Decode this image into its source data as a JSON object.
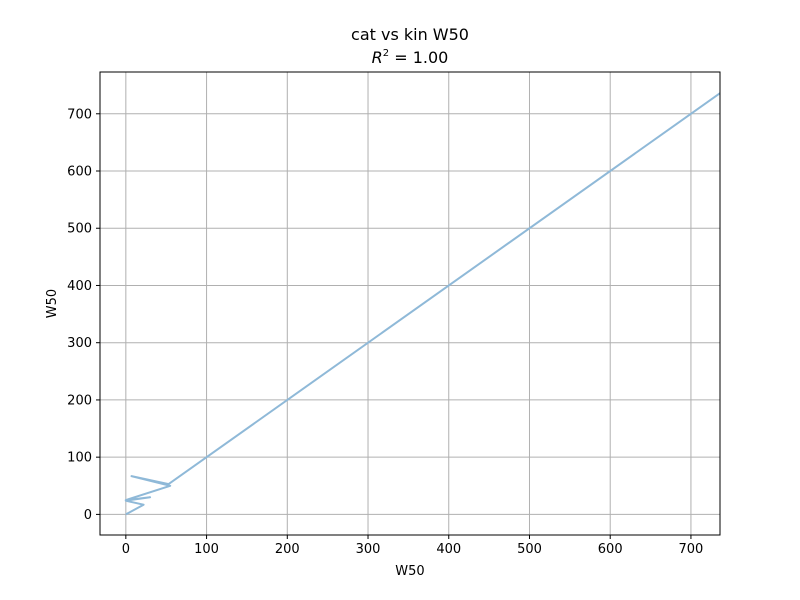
{
  "chart_data": {
    "type": "line",
    "title": "cat vs kin W50",
    "subtitle_prefix": "R",
    "subtitle_sup": "2",
    "subtitle_suffix": " = 1.00",
    "xlabel": "W50",
    "ylabel": "W50",
    "xlim": [
      -32,
      736
    ],
    "ylim": [
      -36,
      773
    ],
    "xticks": [
      0,
      100,
      200,
      300,
      400,
      500,
      600,
      700
    ],
    "yticks": [
      0,
      100,
      200,
      300,
      400,
      500,
      600,
      700
    ],
    "grid": true,
    "series": [
      {
        "color": "#8fb9d8",
        "x": [
          736,
          53,
          7,
          55,
          0,
          30,
          0,
          22,
          0
        ],
        "y": [
          736,
          53,
          67,
          50,
          25,
          30,
          24,
          17,
          0
        ]
      }
    ]
  }
}
